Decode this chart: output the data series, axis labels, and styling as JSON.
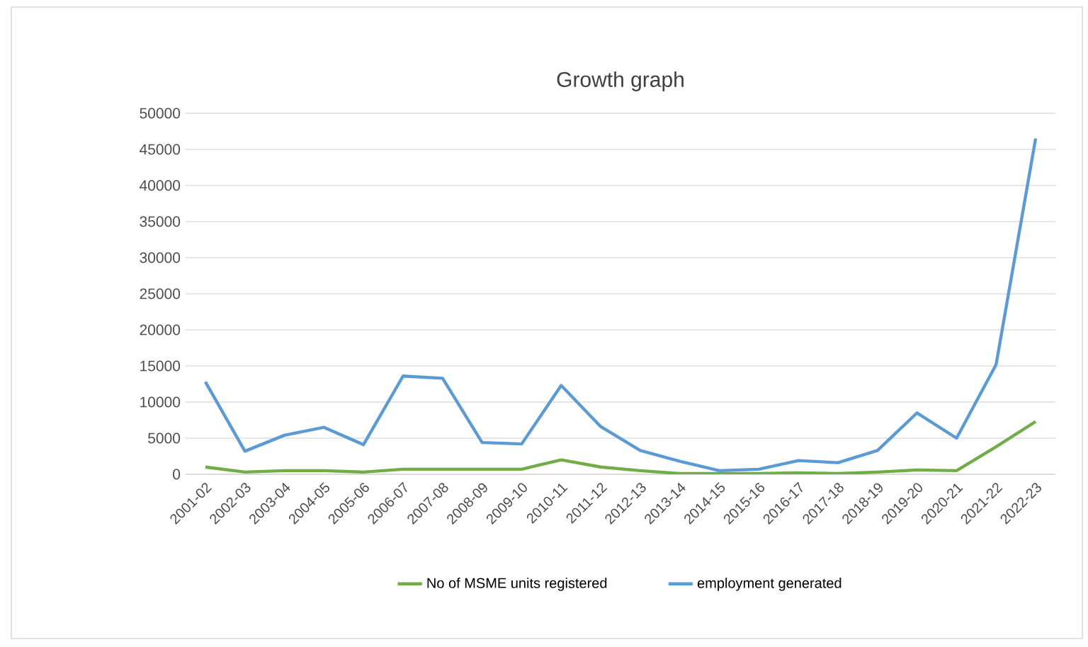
{
  "chart_data": {
    "type": "line",
    "title": "Growth graph",
    "categories": [
      "2001-02",
      "2002-03",
      "2003-04",
      "2004-05",
      "2005-06",
      "2006-07",
      "2007-08",
      "2008-09",
      "2009-10",
      "2010-11",
      "2011-12",
      "2012-13",
      "2013-14",
      "2014-15",
      "2015-16",
      "2016-17",
      "2017-18",
      "2018-19",
      "2019-20",
      "2020-21",
      "2021-22",
      "2022-23"
    ],
    "series": [
      {
        "name": "No of MSME units registered",
        "color": "#70ad47",
        "values": [
          1000,
          300,
          500,
          500,
          300,
          700,
          700,
          700,
          700,
          2000,
          1000,
          500,
          100,
          100,
          100,
          200,
          100,
          300,
          600,
          500,
          3800,
          7300
        ]
      },
      {
        "name": "employment generated",
        "color": "#5b9bd5",
        "values": [
          12800,
          3200,
          5400,
          6500,
          4100,
          13600,
          13300,
          4400,
          4200,
          12300,
          6600,
          3300,
          1800,
          500,
          700,
          1900,
          1600,
          3300,
          8500,
          5000,
          15200,
          46500
        ]
      }
    ],
    "ylim": [
      0,
      50000
    ],
    "yticks": [
      0,
      5000,
      10000,
      15000,
      20000,
      25000,
      30000,
      35000,
      40000,
      45000,
      50000
    ],
    "grid": "y",
    "legend": "bottom",
    "marker": "none",
    "line_style": "solid"
  }
}
